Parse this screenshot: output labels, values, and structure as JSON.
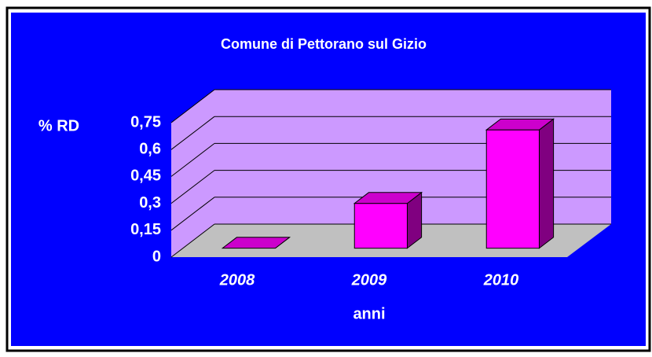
{
  "chart_data": {
    "type": "bar3d",
    "title": "Comune di Pettorano sul Gizio",
    "x_label": "anni",
    "y_label": "% RD",
    "categories": [
      "2008",
      "2009",
      "2010"
    ],
    "values": [
      0,
      0.25,
      0.66
    ],
    "color": "#ff00ff",
    "ylim": [
      0,
      0.75
    ],
    "yticks": [
      0,
      {
        "value": 0.15,
        "label": "0,15"
      },
      {
        "value": 0.3,
        "label": "0,3"
      },
      {
        "value": 0.45,
        "label": "0,45"
      },
      {
        "value": 0.6,
        "label": "0,6"
      },
      {
        "value": 0.75,
        "label": "0,75"
      }
    ],
    "grid": true
  }
}
